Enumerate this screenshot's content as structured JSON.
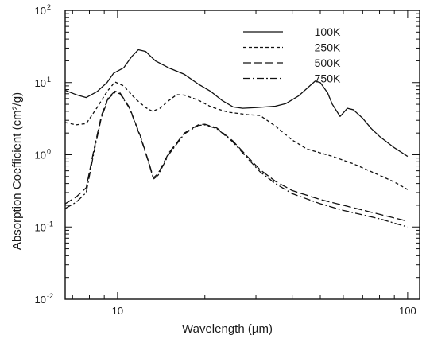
{
  "chart_data": {
    "type": "line",
    "title": "",
    "xlabel": "Wavelength (µm)",
    "ylabel": "Absorption Coefficient (cm²/g)",
    "x_scale": "log",
    "y_scale": "log",
    "xlim": [
      6.6,
      110
    ],
    "ylim": [
      0.01,
      100
    ],
    "x_tick_labels": [
      {
        "value": 10,
        "label": "10"
      },
      {
        "value": 100,
        "label": "100"
      }
    ],
    "y_tick_labels": [
      {
        "value": 0.01,
        "base": "10",
        "exp": "-2"
      },
      {
        "value": 0.1,
        "base": "10",
        "exp": "-1"
      },
      {
        "value": 1,
        "base": "10",
        "exp": "0"
      },
      {
        "value": 10,
        "base": "10",
        "exp": "1"
      },
      {
        "value": 100,
        "base": "10",
        "exp": "2"
      }
    ],
    "grid": false,
    "legend_position": "top-right",
    "series": [
      {
        "name": "100K",
        "style": "solid",
        "points": [
          [
            6.6,
            7.8
          ],
          [
            7.2,
            6.8
          ],
          [
            7.8,
            6.2
          ],
          [
            8.5,
            7.5
          ],
          [
            9.2,
            10
          ],
          [
            9.7,
            13.5
          ],
          [
            10.5,
            16
          ],
          [
            11.2,
            23
          ],
          [
            11.8,
            28.5
          ],
          [
            12.5,
            27
          ],
          [
            13.5,
            20
          ],
          [
            15,
            16
          ],
          [
            17,
            13
          ],
          [
            19,
            9.5
          ],
          [
            21,
            7.5
          ],
          [
            23,
            5.6
          ],
          [
            25,
            4.6
          ],
          [
            27,
            4.4
          ],
          [
            30,
            4.5
          ],
          [
            35,
            4.7
          ],
          [
            38,
            5.1
          ],
          [
            42,
            6.5
          ],
          [
            46,
            9
          ],
          [
            48,
            10.5
          ],
          [
            50,
            10
          ],
          [
            53,
            7.2
          ],
          [
            55,
            5
          ],
          [
            57,
            4
          ],
          [
            58.5,
            3.4
          ],
          [
            60,
            3.8
          ],
          [
            62,
            4.4
          ],
          [
            65,
            4.2
          ],
          [
            70,
            3.2
          ],
          [
            75,
            2.3
          ],
          [
            80,
            1.8
          ],
          [
            90,
            1.25
          ],
          [
            100,
            0.95
          ]
        ]
      },
      {
        "name": "250K",
        "style": "dashed",
        "points": [
          [
            6.6,
            2.8
          ],
          [
            7.2,
            2.6
          ],
          [
            7.8,
            2.7
          ],
          [
            8.5,
            4.5
          ],
          [
            9.2,
            7.5
          ],
          [
            9.8,
            10.2
          ],
          [
            10.5,
            9
          ],
          [
            11.5,
            6
          ],
          [
            12.5,
            4.5
          ],
          [
            13.2,
            4
          ],
          [
            14,
            4.4
          ],
          [
            15,
            5.6
          ],
          [
            16,
            6.8
          ],
          [
            17,
            6.7
          ],
          [
            19,
            5.7
          ],
          [
            21,
            4.6
          ],
          [
            24,
            3.9
          ],
          [
            28,
            3.6
          ],
          [
            31,
            3.5
          ],
          [
            35,
            2.5
          ],
          [
            40,
            1.6
          ],
          [
            45,
            1.2
          ],
          [
            55,
            0.95
          ],
          [
            65,
            0.75
          ],
          [
            80,
            0.52
          ],
          [
            90,
            0.42
          ],
          [
            100,
            0.33
          ]
        ]
      },
      {
        "name": "500K",
        "style": "longdash",
        "points": [
          [
            6.6,
            0.21
          ],
          [
            7.2,
            0.26
          ],
          [
            7.8,
            0.35
          ],
          [
            8.3,
            1.2
          ],
          [
            8.8,
            3.5
          ],
          [
            9.3,
            6.2
          ],
          [
            9.8,
            7.6
          ],
          [
            10.2,
            7.2
          ],
          [
            11,
            4.5
          ],
          [
            12,
            1.8
          ],
          [
            12.8,
            0.8
          ],
          [
            13.3,
            0.48
          ],
          [
            13.8,
            0.55
          ],
          [
            15,
            1.05
          ],
          [
            17,
            2
          ],
          [
            19,
            2.6
          ],
          [
            20,
            2.65
          ],
          [
            22,
            2.35
          ],
          [
            25,
            1.55
          ],
          [
            28,
            0.95
          ],
          [
            31,
            0.62
          ],
          [
            35,
            0.43
          ],
          [
            40,
            0.32
          ],
          [
            50,
            0.24
          ],
          [
            60,
            0.2
          ],
          [
            80,
            0.15
          ],
          [
            100,
            0.12
          ]
        ]
      },
      {
        "name": "750K",
        "style": "dashdot",
        "points": [
          [
            6.6,
            0.18
          ],
          [
            7.2,
            0.22
          ],
          [
            7.8,
            0.3
          ],
          [
            8.3,
            1.1
          ],
          [
            8.8,
            3.3
          ],
          [
            9.3,
            6
          ],
          [
            9.8,
            7.3
          ],
          [
            10.2,
            7
          ],
          [
            11,
            4.4
          ],
          [
            12,
            1.75
          ],
          [
            12.8,
            0.78
          ],
          [
            13.3,
            0.46
          ],
          [
            13.8,
            0.52
          ],
          [
            15,
            1
          ],
          [
            17,
            1.95
          ],
          [
            19,
            2.55
          ],
          [
            20,
            2.6
          ],
          [
            22,
            2.3
          ],
          [
            25,
            1.5
          ],
          [
            28,
            0.9
          ],
          [
            31,
            0.58
          ],
          [
            35,
            0.4
          ],
          [
            40,
            0.29
          ],
          [
            50,
            0.21
          ],
          [
            60,
            0.17
          ],
          [
            80,
            0.13
          ],
          [
            100,
            0.1
          ]
        ]
      }
    ]
  }
}
